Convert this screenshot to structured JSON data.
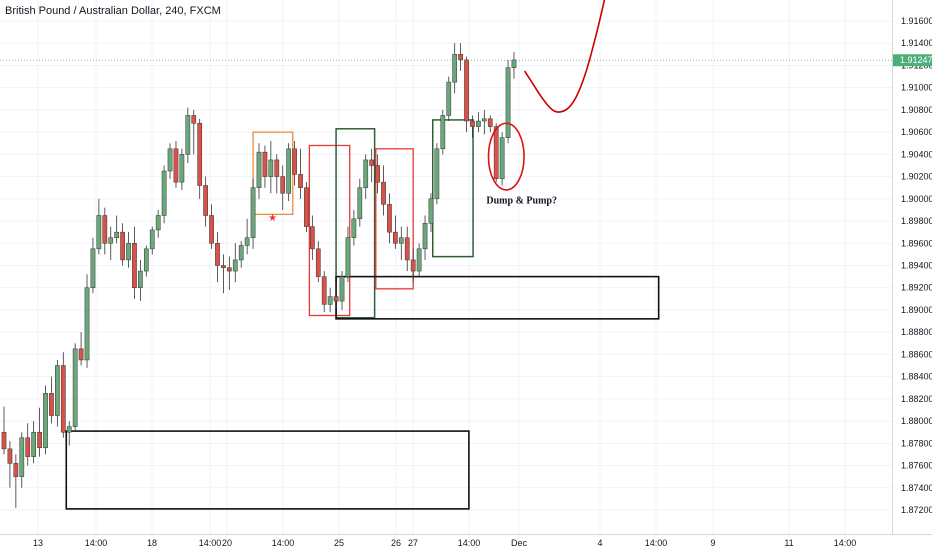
{
  "chart_data": {
    "type": "candlestick",
    "title": "British Pound / Australian Dollar, 240, FXCM",
    "ylim": [
      1.8706,
      1.9172
    ],
    "y_ticks": [
      "1.91600",
      "1.91400",
      "1.91200",
      "1.91000",
      "1.90800",
      "1.90600",
      "1.90400",
      "1.90200",
      "1.90000",
      "1.89800",
      "1.89600",
      "1.89400",
      "1.89200",
      "1.89000",
      "1.88800",
      "1.88600",
      "1.88400",
      "1.88200",
      "1.88000",
      "1.87800",
      "1.87600",
      "1.87400",
      "1.87200"
    ],
    "x_ticks": [
      "13",
      "14:00",
      "18",
      "14:00",
      "20",
      "14:00",
      "25",
      "26",
      "27",
      "14:00",
      "Dec",
      "4",
      "14:00",
      "9",
      "11",
      "14:00"
    ],
    "last_price": "1.91247",
    "last_price_value": 1.91247,
    "colors": {
      "up": "#6aa87a",
      "down": "#d9524a",
      "wick": "#333333",
      "price_line": "#4caf7a",
      "projection": "#cc0000"
    },
    "annotations": [
      {
        "type": "text",
        "text": "Dump & Pump?"
      },
      {
        "type": "marker",
        "text": "★"
      }
    ],
    "candles": [
      [
        1.879,
        1.8813,
        1.877,
        1.8775
      ],
      [
        1.8775,
        1.8782,
        1.874,
        1.8762
      ],
      [
        1.8762,
        1.877,
        1.8722,
        1.875
      ],
      [
        1.875,
        1.879,
        1.874,
        1.8785
      ],
      [
        1.8785,
        1.8798,
        1.876,
        1.8768
      ],
      [
        1.8768,
        1.88,
        1.8762,
        1.879
      ],
      [
        1.879,
        1.8812,
        1.8768,
        1.8776
      ],
      [
        1.8776,
        1.8832,
        1.877,
        1.8825
      ],
      [
        1.8825,
        1.884,
        1.8798,
        1.8805
      ],
      [
        1.8805,
        1.8855,
        1.8795,
        1.885
      ],
      [
        1.885,
        1.8862,
        1.8785,
        1.879
      ],
      [
        1.879,
        1.88,
        1.8778,
        1.8795
      ],
      [
        1.8795,
        1.887,
        1.879,
        1.8865
      ],
      [
        1.8865,
        1.888,
        1.885,
        1.8855
      ],
      [
        1.8855,
        1.8932,
        1.8848,
        1.892
      ],
      [
        1.892,
        1.8965,
        1.8915,
        1.8955
      ],
      [
        1.8955,
        1.9,
        1.895,
        1.8985
      ],
      [
        1.8985,
        1.8992,
        1.895,
        1.896
      ],
      [
        1.896,
        1.8975,
        1.8945,
        1.8965
      ],
      [
        1.8965,
        1.8985,
        1.896,
        1.897
      ],
      [
        1.897,
        1.8978,
        1.894,
        1.8945
      ],
      [
        1.8945,
        1.897,
        1.8938,
        1.896
      ],
      [
        1.896,
        1.8975,
        1.891,
        1.892
      ],
      [
        1.892,
        1.8945,
        1.8908,
        1.8935
      ],
      [
        1.8935,
        1.8958,
        1.893,
        1.8955
      ],
      [
        1.8955,
        1.8975,
        1.895,
        1.8972
      ],
      [
        1.8972,
        1.899,
        1.8965,
        1.8985
      ],
      [
        1.8985,
        1.903,
        1.8978,
        1.9025
      ],
      [
        1.9025,
        1.905,
        1.9018,
        1.9045
      ],
      [
        1.9045,
        1.9052,
        1.901,
        1.9015
      ],
      [
        1.9015,
        1.9045,
        1.9008,
        1.904
      ],
      [
        1.904,
        1.9082,
        1.9032,
        1.9075
      ],
      [
        1.9075,
        1.908,
        1.904,
        1.9068
      ],
      [
        1.9068,
        1.9072,
        1.9,
        1.9012
      ],
      [
        1.9012,
        1.902,
        1.8975,
        1.8985
      ],
      [
        1.8985,
        1.8995,
        1.8955,
        1.896
      ],
      [
        1.896,
        1.897,
        1.8925,
        1.894
      ],
      [
        1.894,
        1.895,
        1.8915,
        1.8938
      ],
      [
        1.8938,
        1.8948,
        1.8918,
        1.8935
      ],
      [
        1.8935,
        1.896,
        1.8925,
        1.8945
      ],
      [
        1.8945,
        1.8962,
        1.8938,
        1.8958
      ],
      [
        1.8958,
        1.8982,
        1.895,
        1.8965
      ],
      [
        1.8965,
        1.9018,
        1.8955,
        1.901
      ],
      [
        1.901,
        1.905,
        1.9,
        1.9042
      ],
      [
        1.9042,
        1.9048,
        1.901,
        1.902
      ],
      [
        1.902,
        1.9052,
        1.9005,
        1.9035
      ],
      [
        1.9035,
        1.904,
        1.9005,
        1.902
      ],
      [
        1.902,
        1.903,
        1.899,
        1.9005
      ],
      [
        1.9005,
        1.905,
        1.8998,
        1.9045
      ],
      [
        1.9045,
        1.9052,
        1.9012,
        1.9022
      ],
      [
        1.9022,
        1.9045,
        1.9,
        1.901
      ],
      [
        1.901,
        1.9015,
        1.897,
        1.8975
      ],
      [
        1.8975,
        1.8985,
        1.8945,
        1.8955
      ],
      [
        1.8955,
        1.8962,
        1.8925,
        1.893
      ],
      [
        1.893,
        1.8935,
        1.8898,
        1.8905
      ],
      [
        1.8905,
        1.892,
        1.8898,
        1.8912
      ],
      [
        1.8912,
        1.8925,
        1.8902,
        1.8908
      ],
      [
        1.8908,
        1.8935,
        1.89,
        1.893
      ],
      [
        1.893,
        1.8975,
        1.8925,
        1.8965
      ],
      [
        1.8965,
        1.899,
        1.8958,
        1.8982
      ],
      [
        1.8982,
        1.9018,
        1.8975,
        1.901
      ],
      [
        1.901,
        1.904,
        1.9,
        1.9035
      ],
      [
        1.9035,
        1.9045,
        1.9015,
        1.903
      ],
      [
        1.903,
        1.904,
        1.9005,
        1.9015
      ],
      [
        1.9015,
        1.903,
        1.8985,
        1.8995
      ],
      [
        1.8995,
        1.9005,
        1.896,
        1.897
      ],
      [
        1.897,
        1.8985,
        1.8955,
        1.896
      ],
      [
        1.896,
        1.8975,
        1.8945,
        1.8965
      ],
      [
        1.8965,
        1.8975,
        1.8935,
        1.8945
      ],
      [
        1.8945,
        1.8955,
        1.8925,
        1.8935
      ],
      [
        1.8935,
        1.896,
        1.893,
        1.8955
      ],
      [
        1.8955,
        1.8985,
        1.8945,
        1.8978
      ],
      [
        1.8978,
        1.9005,
        1.897,
        1.9
      ],
      [
        1.9,
        1.905,
        1.8995,
        1.9045
      ],
      [
        1.9045,
        1.908,
        1.904,
        1.9075
      ],
      [
        1.9075,
        1.911,
        1.907,
        1.9105
      ],
      [
        1.9105,
        1.914,
        1.9095,
        1.913
      ],
      [
        1.913,
        1.914,
        1.9115,
        1.9125
      ],
      [
        1.9125,
        1.9128,
        1.906,
        1.907
      ],
      [
        1.907,
        1.9075,
        1.9055,
        1.9065
      ],
      [
        1.9065,
        1.9078,
        1.906,
        1.907
      ],
      [
        1.907,
        1.908,
        1.9058,
        1.9072
      ],
      [
        1.9072,
        1.9075,
        1.906,
        1.9065
      ],
      [
        1.9065,
        1.9068,
        1.9015,
        1.9018
      ],
      [
        1.9018,
        1.906,
        1.9012,
        1.9055
      ],
      [
        1.9055,
        1.9125,
        1.905,
        1.9118
      ],
      [
        1.9118,
        1.9132,
        1.9108,
        1.9125
      ]
    ],
    "boxes": [
      {
        "i0": 72.3,
        "i1": 79.1,
        "y0": 1.9071,
        "y1": 1.8948,
        "color": "#2e5e37",
        "width": 1.5
      },
      {
        "i0": 51.5,
        "i1": 58.3,
        "y0": 1.9048,
        "y1": 1.8895,
        "color": "#e53935",
        "width": 1.3
      },
      {
        "i0": 56.0,
        "i1": 62.5,
        "y0": 1.9063,
        "y1": 1.8893,
        "color": "#2e5e37",
        "width": 1.5
      },
      {
        "i0": 62.7,
        "i1": 69.0,
        "y0": 1.9045,
        "y1": 1.8919,
        "color": "#e53935",
        "width": 1.3
      },
      {
        "i0": 42.0,
        "i1": 48.7,
        "y0": 1.906,
        "y1": 1.8986,
        "color": "#f08a3c",
        "width": 1.3
      },
      {
        "i0": 56.0,
        "i1": 110.4,
        "y0": 1.893,
        "y1": 1.8892,
        "color": "#111111",
        "width": 1.6
      },
      {
        "i0": 10.5,
        "i1": 78.4,
        "y0": 1.8791,
        "y1": 1.8721,
        "color": "#111111",
        "width": 1.6
      }
    ],
    "marker_index": 45.3,
    "marker_price": 1.898,
    "ellipse": {
      "i": 84.7,
      "price": 1.9038,
      "ri": 3.0,
      "rp": 0.003,
      "color": "#dd1111"
    },
    "note_index": 87.3,
    "note_price": 1.8996,
    "projection": [
      [
        87.8,
        1.9115
      ],
      [
        92.0,
        1.908
      ],
      [
        94.0,
        1.9077
      ],
      [
        96.0,
        1.9085
      ],
      [
        98.0,
        1.911
      ],
      [
        100.0,
        1.915
      ],
      [
        101.3,
        1.918
      ]
    ]
  }
}
